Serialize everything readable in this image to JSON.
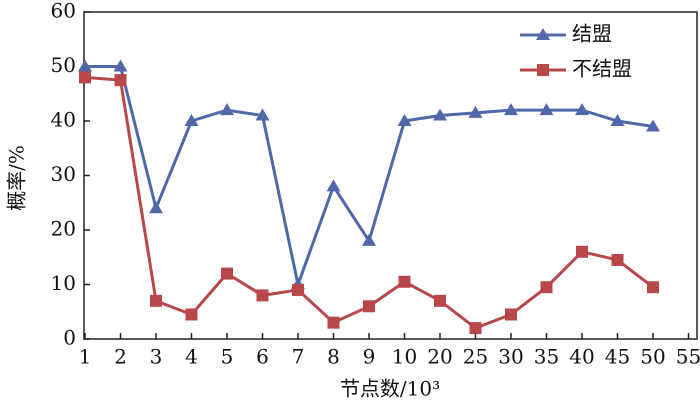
{
  "chart_data": {
    "type": "line",
    "xlabel": "节点数/10³",
    "ylabel": "概率/%",
    "categories": [
      "1",
      "2",
      "3",
      "4",
      "5",
      "6",
      "7",
      "8",
      "9",
      "10",
      "20",
      "25",
      "30",
      "35",
      "40",
      "45",
      "50",
      "55"
    ],
    "series": [
      {
        "name": "结盟",
        "color": "#5068a8",
        "marker": "triangle",
        "values": [
          50,
          50,
          24,
          40,
          42,
          41,
          10,
          28,
          18,
          40,
          41,
          41.5,
          42,
          42,
          42,
          40,
          39,
          null
        ]
      },
      {
        "name": "不结盟",
        "color": "#b8474a",
        "marker": "square",
        "values": [
          48,
          47.5,
          7,
          4.5,
          12,
          8,
          9,
          3,
          6,
          10.5,
          7,
          2,
          4.5,
          9.5,
          16,
          14.5,
          9.5,
          null
        ]
      }
    ],
    "ylim": [
      0,
      60
    ],
    "yticks": [
      0,
      10,
      20,
      30,
      40,
      50,
      60
    ],
    "grid": false,
    "legend": "upper right"
  }
}
